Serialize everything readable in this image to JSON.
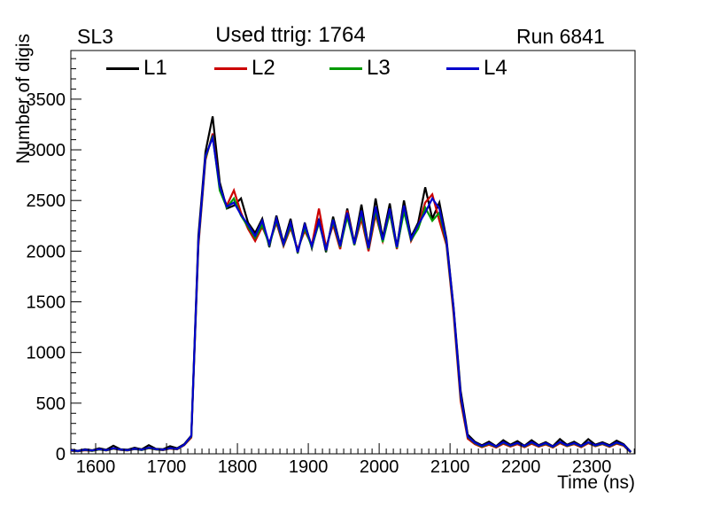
{
  "titles": {
    "left": "SL3",
    "center": "Used ttrig: 1764",
    "right": "Run 6841"
  },
  "axes": {
    "x": {
      "label": "Time (ns)"
    },
    "y": {
      "label": "Number of digis"
    }
  },
  "legend": [
    {
      "label": "L1",
      "color": "#000000"
    },
    {
      "label": "L2",
      "color": "#cc0000"
    },
    {
      "label": "L3",
      "color": "#009900"
    },
    {
      "label": "L4",
      "color": "#0000cc"
    }
  ],
  "chart_data": {
    "type": "line",
    "title": "Used ttrig: 1764",
    "subtitle_left": "SL3",
    "subtitle_right": "Run 6841",
    "xlabel": "Time (ns)",
    "ylabel": "Number of digis",
    "xlim": [
      1565,
      2361
    ],
    "ylim": [
      0,
      3980
    ],
    "grid": false,
    "legend_position": "top-inside",
    "x_major_ticks": [
      1600,
      1700,
      1800,
      1900,
      2000,
      2100,
      2200,
      2300
    ],
    "x_minor_step": 10,
    "y_major_ticks": [
      0,
      500,
      1000,
      1500,
      2000,
      2500,
      3000,
      3500
    ],
    "y_minor_step": 100,
    "x": [
      1565,
      1575,
      1585,
      1595,
      1605,
      1615,
      1625,
      1635,
      1645,
      1655,
      1665,
      1675,
      1685,
      1695,
      1705,
      1715,
      1725,
      1735,
      1745,
      1755,
      1765,
      1775,
      1785,
      1795,
      1805,
      1815,
      1825,
      1835,
      1845,
      1855,
      1865,
      1875,
      1885,
      1895,
      1905,
      1915,
      1925,
      1935,
      1945,
      1955,
      1965,
      1975,
      1985,
      1995,
      2005,
      2015,
      2025,
      2035,
      2045,
      2055,
      2065,
      2075,
      2085,
      2095,
      2105,
      2115,
      2125,
      2135,
      2145,
      2155,
      2165,
      2175,
      2185,
      2195,
      2205,
      2215,
      2225,
      2235,
      2245,
      2255,
      2265,
      2275,
      2285,
      2295,
      2305,
      2315,
      2325,
      2335,
      2345,
      2355
    ],
    "series": [
      {
        "name": "L1",
        "color": "#000000",
        "values": [
          40,
          30,
          45,
          35,
          55,
          40,
          80,
          45,
          40,
          60,
          45,
          85,
          50,
          45,
          75,
          55,
          95,
          180,
          2150,
          2980,
          3330,
          2680,
          2420,
          2450,
          2520,
          2280,
          2180,
          2320,
          2040,
          2350,
          2080,
          2320,
          1980,
          2280,
          2030,
          2320,
          1990,
          2340,
          2060,
          2420,
          2080,
          2460,
          2040,
          2520,
          2130,
          2470,
          2040,
          2500,
          2140,
          2280,
          2630,
          2320,
          2480,
          2120,
          1450,
          620,
          190,
          120,
          85,
          120,
          75,
          135,
          90,
          125,
          80,
          135,
          85,
          115,
          75,
          145,
          90,
          120,
          80,
          145,
          90,
          115,
          85,
          130,
          95,
          20
        ]
      },
      {
        "name": "L2",
        "color": "#cc0000",
        "values": [
          30,
          25,
          35,
          28,
          42,
          32,
          50,
          38,
          32,
          46,
          38,
          55,
          42,
          36,
          52,
          44,
          85,
          160,
          2050,
          2900,
          3160,
          2620,
          2450,
          2600,
          2380,
          2220,
          2100,
          2240,
          2080,
          2280,
          2050,
          2230,
          2020,
          2200,
          2060,
          2420,
          2040,
          2260,
          2020,
          2400,
          2060,
          2320,
          2000,
          2360,
          2100,
          2380,
          2020,
          2420,
          2100,
          2240,
          2480,
          2560,
          2300,
          2060,
          1380,
          520,
          150,
          95,
          65,
          90,
          62,
          100,
          72,
          95,
          66,
          100,
          70,
          92,
          62,
          105,
          74,
          95,
          66,
          105,
          74,
          95,
          68,
          100,
          80,
          12
        ]
      },
      {
        "name": "L3",
        "color": "#009900",
        "values": [
          32,
          26,
          38,
          30,
          44,
          34,
          52,
          40,
          34,
          48,
          38,
          58,
          44,
          38,
          54,
          46,
          88,
          170,
          2080,
          2920,
          3140,
          2600,
          2430,
          2520,
          2350,
          2240,
          2130,
          2260,
          2060,
          2300,
          2060,
          2250,
          2000,
          2230,
          2040,
          2280,
          2020,
          2290,
          2040,
          2340,
          2060,
          2360,
          2020,
          2400,
          2090,
          2380,
          2030,
          2390,
          2110,
          2220,
          2430,
          2300,
          2380,
          2080,
          1420,
          560,
          165,
          105,
          72,
          100,
          68,
          110,
          78,
          105,
          72,
          110,
          76,
          100,
          68,
          115,
          80,
          102,
          72,
          112,
          80,
          100,
          74,
          108,
          85,
          15
        ]
      },
      {
        "name": "L4",
        "color": "#0000cc",
        "values": [
          35,
          28,
          40,
          32,
          46,
          36,
          55,
          42,
          36,
          50,
          40,
          60,
          46,
          40,
          56,
          48,
          90,
          175,
          2100,
          2940,
          3120,
          2640,
          2440,
          2480,
          2360,
          2260,
          2150,
          2300,
          2070,
          2320,
          2070,
          2280,
          1990,
          2260,
          2050,
          2300,
          2010,
          2310,
          2050,
          2380,
          2070,
          2400,
          2030,
          2440,
          2110,
          2420,
          2040,
          2450,
          2120,
          2260,
          2380,
          2520,
          2420,
          2100,
          1440,
          580,
          170,
          110,
          78,
          105,
          72,
          115,
          82,
          108,
          76,
          115,
          80,
          105,
          72,
          118,
          84,
          106,
          76,
          115,
          84,
          104,
          78,
          112,
          88,
          18
        ]
      }
    ]
  }
}
